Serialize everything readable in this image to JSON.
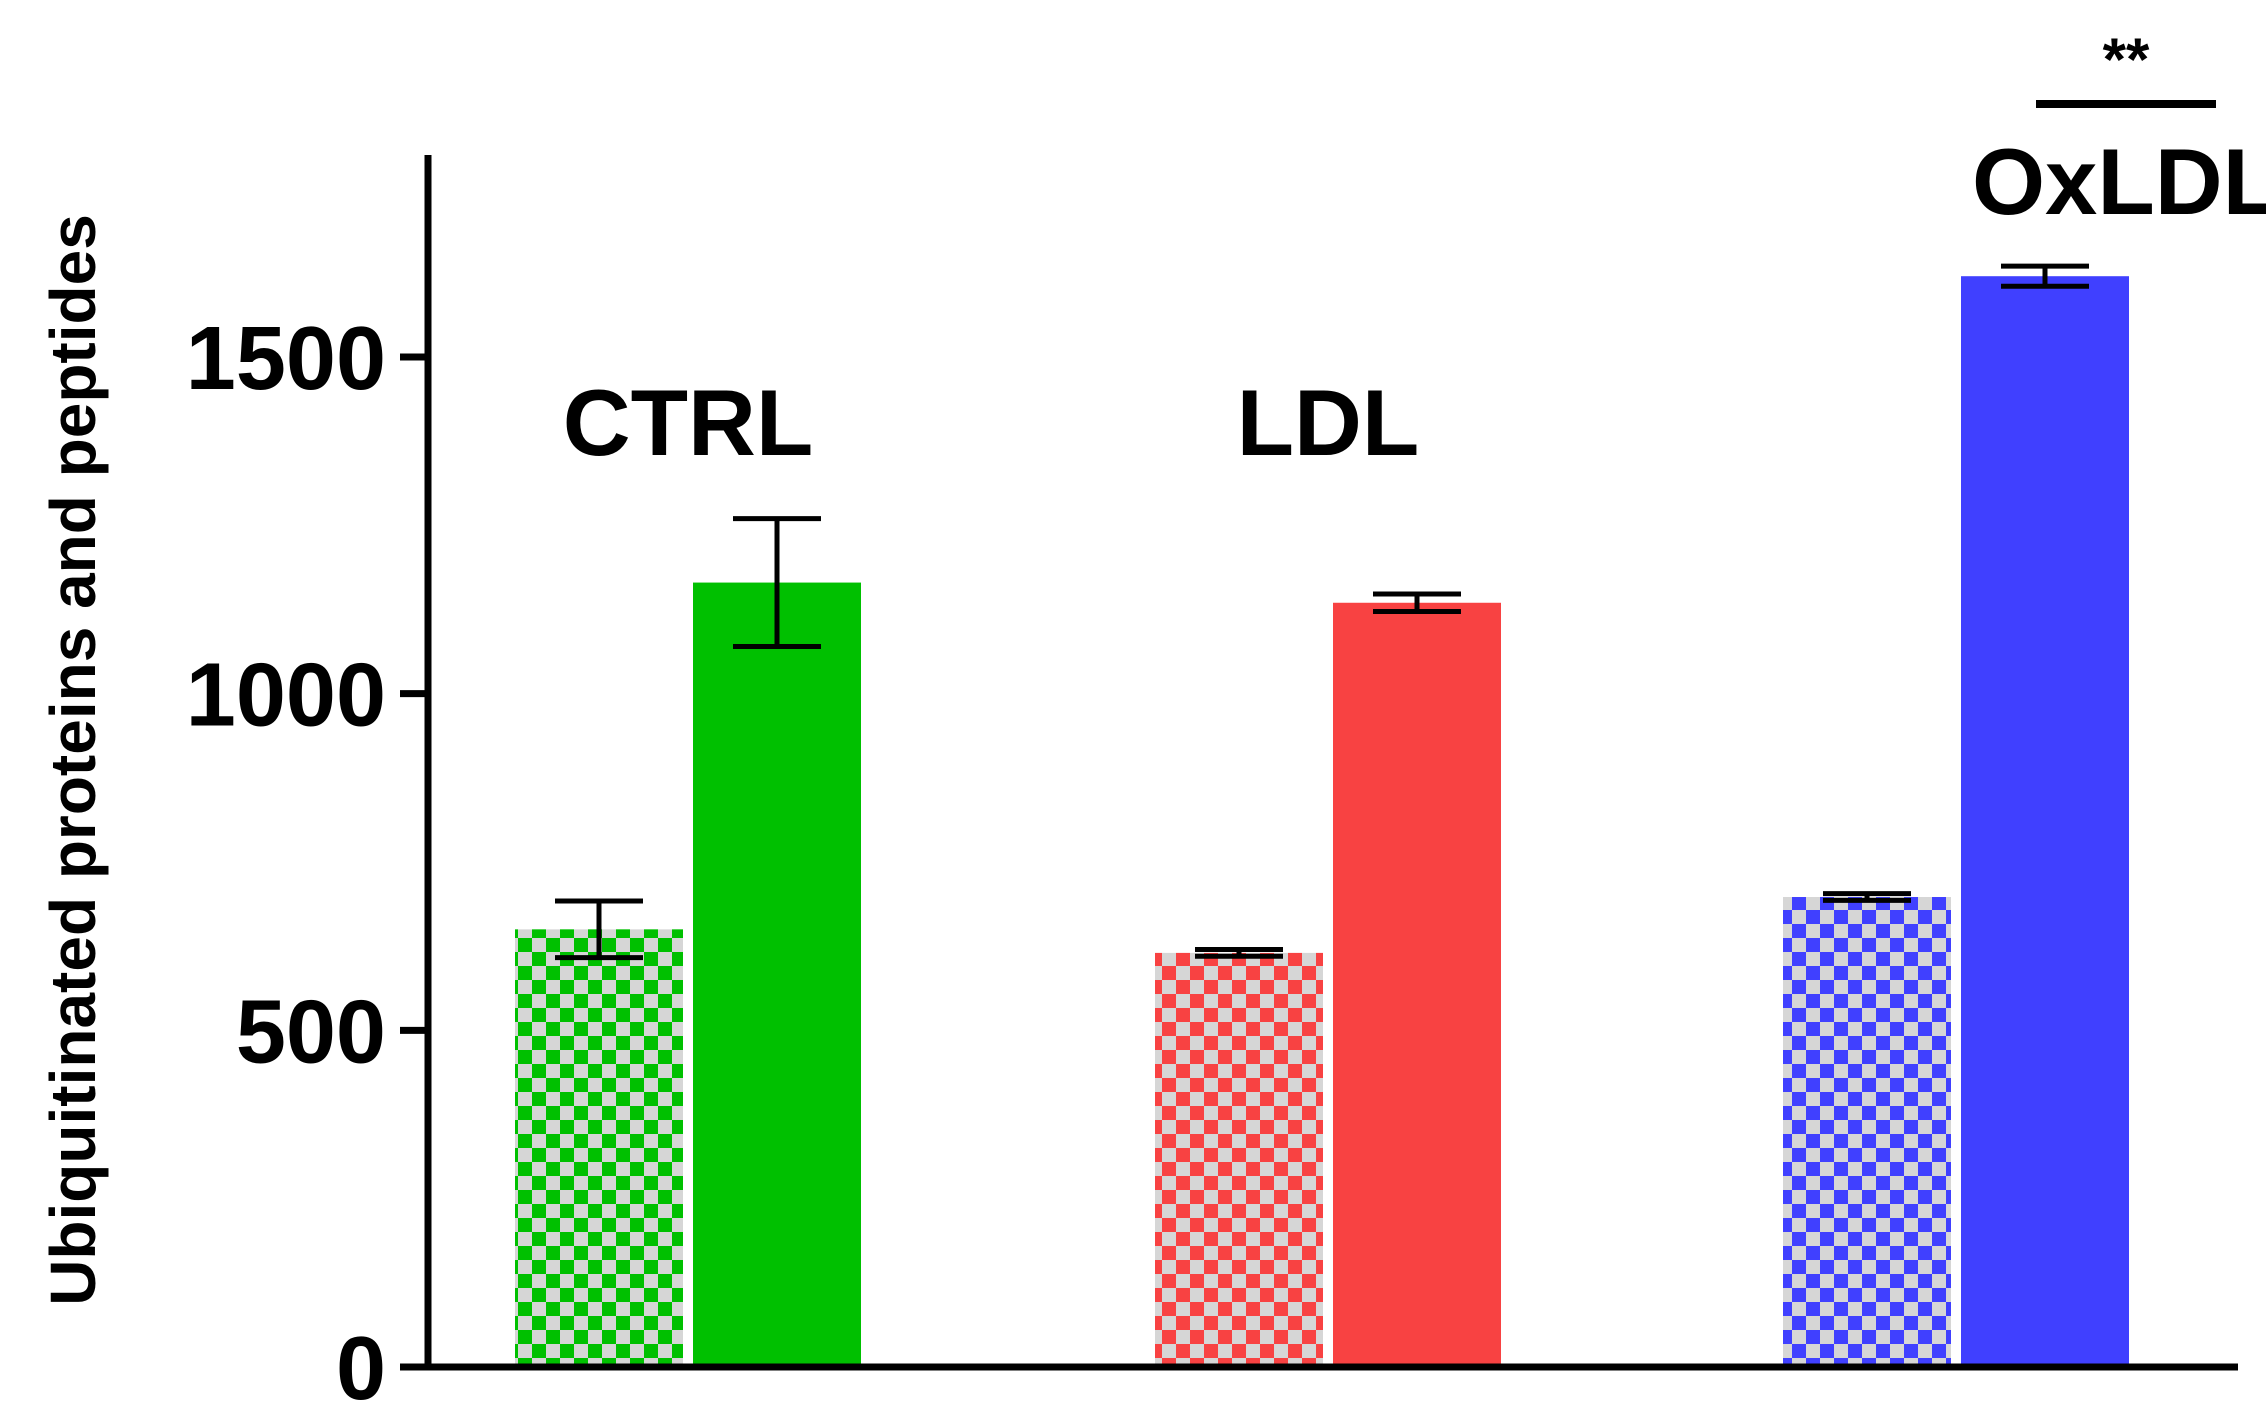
{
  "chart_data": {
    "type": "bar",
    "title": "",
    "xlabel": "",
    "ylabel": "Ubiquitinated proteins and peptides",
    "ylim": [
      0,
      1800
    ],
    "yticks": [
      0,
      500,
      1000,
      1500
    ],
    "grid": false,
    "legend": "none",
    "groups": [
      {
        "label": "CTRL",
        "color": "#00c000",
        "bars": [
          {
            "pattern": "checkered",
            "value": 650,
            "error": 42
          },
          {
            "pattern": "solid",
            "value": 1165,
            "error": 95
          }
        ]
      },
      {
        "label": "LDL",
        "color": "#f84242",
        "bars": [
          {
            "pattern": "checkered",
            "value": 615,
            "error": 5
          },
          {
            "pattern": "solid",
            "value": 1135,
            "error": 13
          }
        ]
      },
      {
        "label": "OxLDL",
        "color": "#4040ff",
        "bars": [
          {
            "pattern": "checkered",
            "value": 698,
            "error": 5
          },
          {
            "pattern": "solid",
            "value": 1620,
            "error": 15
          }
        ]
      }
    ],
    "annotations": [
      {
        "text": "**",
        "group": "OxLDL"
      }
    ],
    "checker_background": "#d6d6d6"
  }
}
